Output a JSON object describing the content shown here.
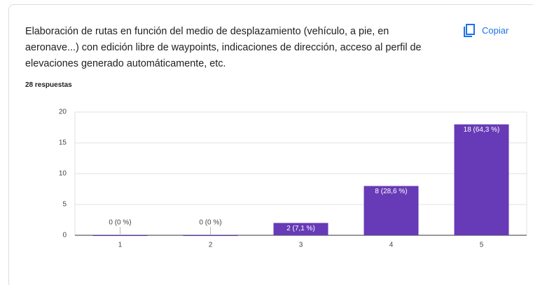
{
  "chart_data": {
    "type": "bar",
    "title": "Elaboración de rutas en función del medio de desplazamiento (vehículo, a pie, en aeronave...) con edición libre de waypoints, indicaciones de dirección, acceso al perfil de elevaciones generado automáticamente, etc.",
    "subtitle": "28 respuestas",
    "button": "Copiar",
    "categories": [
      "1",
      "2",
      "3",
      "4",
      "5"
    ],
    "values": [
      0,
      0,
      2,
      8,
      18
    ],
    "value_labels": [
      "0 (0 %)",
      "0 (0 %)",
      "2 (7,1 %)",
      "8 (28,6 %)",
      "18 (64,3 %)"
    ],
    "color": "#673ab7",
    "ylim": [
      0,
      20
    ],
    "yticks": [
      0,
      5,
      10,
      15,
      20
    ],
    "grid": true
  }
}
